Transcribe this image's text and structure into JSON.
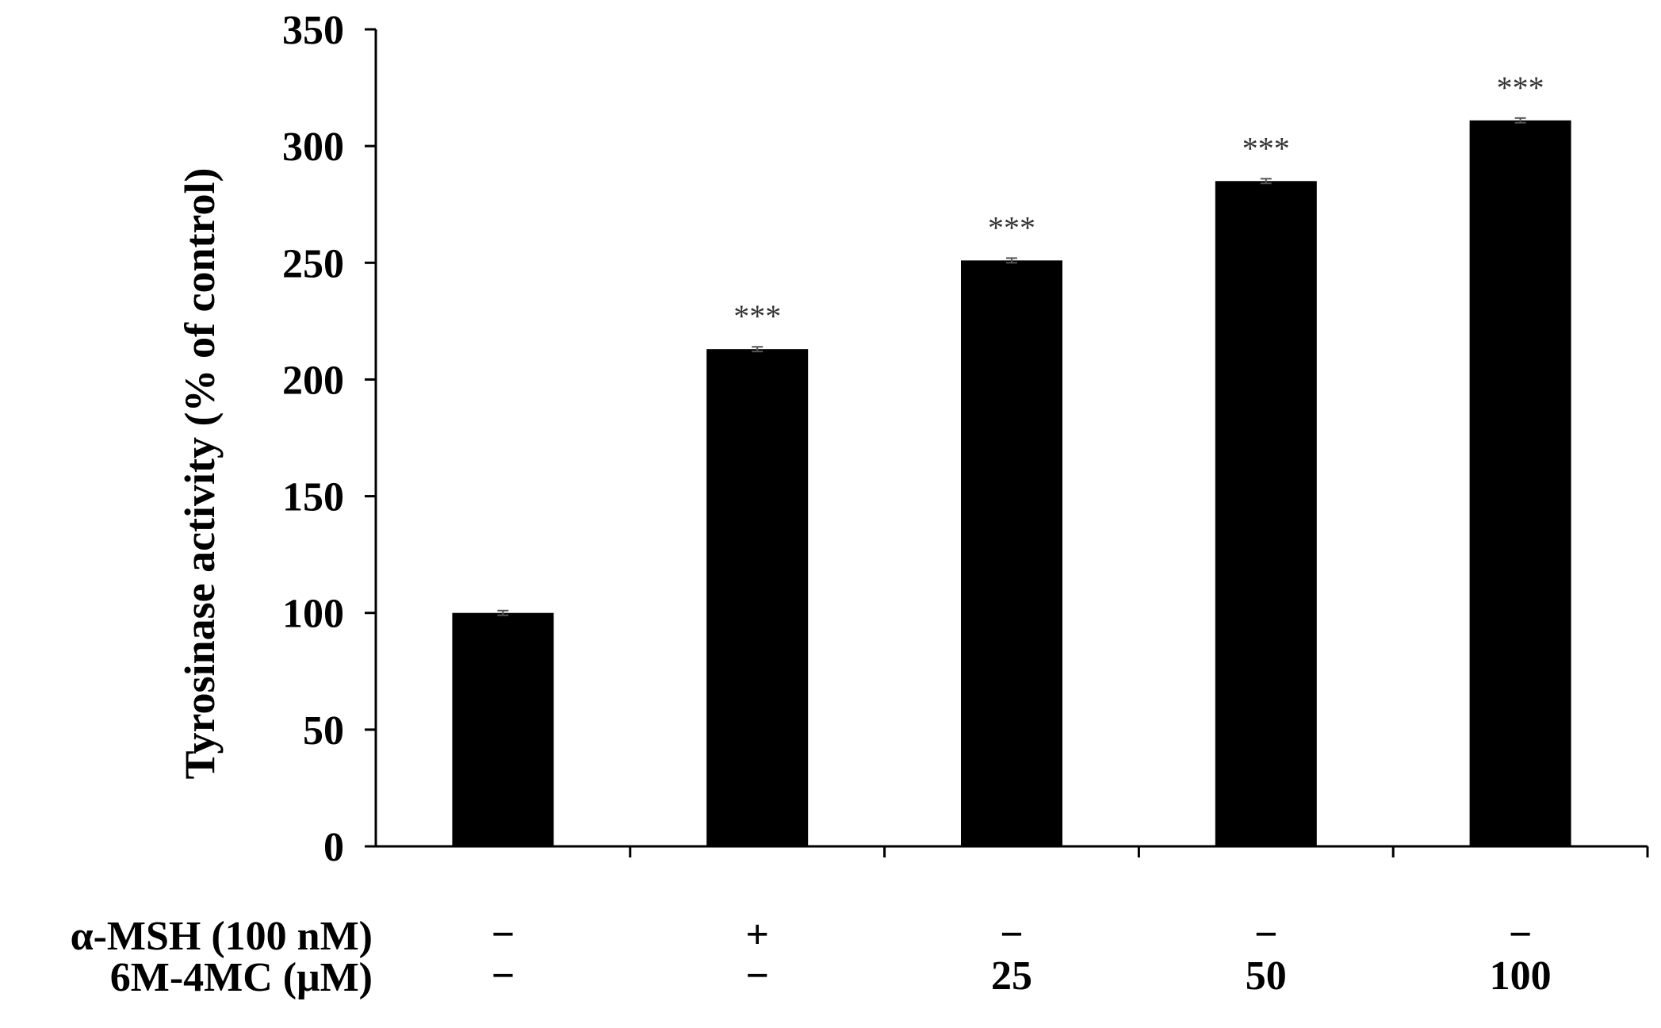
{
  "chart_data": {
    "type": "bar",
    "title": "",
    "ylabel": "Tyrosinase activity (% of control)",
    "ylim": [
      0,
      350
    ],
    "yticks": [
      0,
      50,
      100,
      150,
      200,
      250,
      300,
      350
    ],
    "grid": false,
    "categories": [
      "1",
      "2",
      "3",
      "4",
      "5"
    ],
    "series": [
      {
        "values": [
          100,
          213,
          251,
          285,
          311
        ],
        "errors": [
          1,
          1,
          1,
          1,
          1
        ],
        "color": "#000000"
      }
    ],
    "significance": [
      "",
      "***",
      "***",
      "***",
      "***"
    ],
    "treatment_rows": [
      {
        "label": "α-MSH (100 nM)",
        "values": [
          "−",
          "+",
          "−",
          "−",
          "−"
        ]
      },
      {
        "label": "6M-4MC (μM)",
        "values": [
          "−",
          "−",
          "25",
          "50",
          "100"
        ]
      }
    ]
  }
}
